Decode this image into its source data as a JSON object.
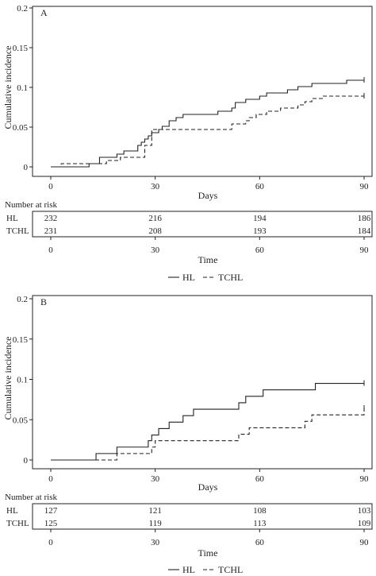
{
  "legend": {
    "hl": "HL",
    "tchl": "TCHL"
  },
  "chart_data": [
    {
      "type": "line",
      "panel_label": "A",
      "ylabel": "Cumulative incidence",
      "xlabel": "Days",
      "xlim": [
        0,
        90
      ],
      "ylim": [
        0,
        0.2
      ],
      "x_ticks": [
        0,
        30,
        60,
        90
      ],
      "y_ticks": [
        0,
        0.05,
        0.1,
        0.15,
        0.2
      ],
      "y_tick_labels": [
        "0",
        "0.05",
        "0.1",
        "0.15",
        "0.2"
      ],
      "series": [
        {
          "name": "HL",
          "style": "solid",
          "x": [
            0,
            11,
            14,
            17,
            19,
            21,
            25,
            26,
            27,
            28,
            29,
            31,
            32,
            34,
            36,
            38,
            42,
            48,
            52,
            53,
            56,
            60,
            62,
            66,
            68,
            70,
            71,
            72,
            75,
            77,
            80,
            85,
            90
          ],
          "y": [
            0,
            0.004,
            0.012,
            0.012,
            0.016,
            0.02,
            0.027,
            0.031,
            0.035,
            0.039,
            0.043,
            0.047,
            0.051,
            0.058,
            0.062,
            0.066,
            0.066,
            0.07,
            0.074,
            0.081,
            0.085,
            0.089,
            0.093,
            0.093,
            0.097,
            0.097,
            0.101,
            0.101,
            0.105,
            0.105,
            0.105,
            0.109,
            0.109
          ]
        },
        {
          "name": "TCHL",
          "style": "dashed",
          "x": [
            0,
            3,
            13,
            16,
            20,
            27,
            29,
            38,
            48,
            52,
            56,
            57,
            59,
            62,
            66,
            70,
            71,
            73,
            75,
            78,
            80,
            90
          ],
          "y": [
            0,
            0.004,
            0.004,
            0.008,
            0.012,
            0.027,
            0.047,
            0.047,
            0.047,
            0.054,
            0.058,
            0.062,
            0.066,
            0.07,
            0.074,
            0.074,
            0.078,
            0.082,
            0.086,
            0.089,
            0.089,
            0.089
          ]
        }
      ],
      "risk_table": {
        "title": "Number at risk",
        "xlabel": "Time",
        "x": [
          0,
          30,
          60,
          90
        ],
        "rows": [
          {
            "label": "HL",
            "values": [
              "232",
              "216",
              "194",
              "186"
            ]
          },
          {
            "label": "TCHL",
            "values": [
              "231",
              "208",
              "193",
              "184"
            ]
          }
        ]
      }
    },
    {
      "type": "line",
      "panel_label": "B",
      "ylabel": "Cumulative incidence",
      "xlabel": "Days",
      "xlim": [
        0,
        90
      ],
      "ylim": [
        0,
        0.2
      ],
      "x_ticks": [
        0,
        30,
        60,
        90
      ],
      "y_ticks": [
        0,
        0.05,
        0.1,
        0.15,
        0.2
      ],
      "y_tick_labels": [
        "0",
        "0.05",
        "0.1",
        "0.15",
        "0.2"
      ],
      "series": [
        {
          "name": "HL",
          "style": "solid",
          "x": [
            0,
            13,
            19,
            28,
            29,
            31,
            34,
            36,
            38,
            41,
            54,
            56,
            61,
            76,
            90
          ],
          "y": [
            0,
            0.008,
            0.016,
            0.024,
            0.031,
            0.039,
            0.047,
            0.047,
            0.055,
            0.063,
            0.071,
            0.079,
            0.087,
            0.095,
            0.095
          ]
        },
        {
          "name": "TCHL",
          "style": "dashed",
          "x": [
            0,
            19,
            29,
            30,
            54,
            57,
            73,
            75,
            90
          ],
          "y": [
            0,
            0.008,
            0.016,
            0.024,
            0.032,
            0.04,
            0.048,
            0.056,
            0.064
          ]
        }
      ],
      "risk_table": {
        "title": "Number at risk",
        "xlabel": "Time",
        "x": [
          0,
          30,
          60,
          90
        ],
        "rows": [
          {
            "label": "HL",
            "values": [
              "127",
              "121",
              "108",
              "103"
            ]
          },
          {
            "label": "TCHL",
            "values": [
              "125",
              "119",
              "113",
              "109"
            ]
          }
        ]
      }
    }
  ]
}
